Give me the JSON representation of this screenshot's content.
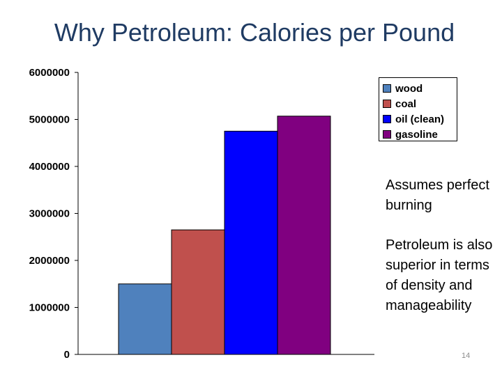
{
  "slide": {
    "title": "Why Petroleum: Calories per Pound",
    "notes": [
      "Assumes perfect burning",
      "Petroleum is also superior in terms of density and manageability"
    ],
    "page_number": "14"
  },
  "chart_data": {
    "type": "bar",
    "categories": [
      "wood",
      "coal",
      "oil (clean)",
      "gasoline"
    ],
    "values": [
      1500000,
      2650000,
      4750000,
      5070000
    ],
    "colors": [
      "#4f81bd",
      "#c0504d",
      "#0000ff",
      "#800080"
    ],
    "legend": [
      "wood",
      "coal",
      "oil (clean)",
      "gasoline"
    ],
    "legend_position": "top-right",
    "ylim": [
      0,
      6000000
    ],
    "yticks": [
      "0",
      "1000000",
      "2000000",
      "3000000",
      "4000000",
      "5000000",
      "6000000"
    ],
    "grid": false,
    "title": "",
    "xlabel": "",
    "ylabel": ""
  }
}
